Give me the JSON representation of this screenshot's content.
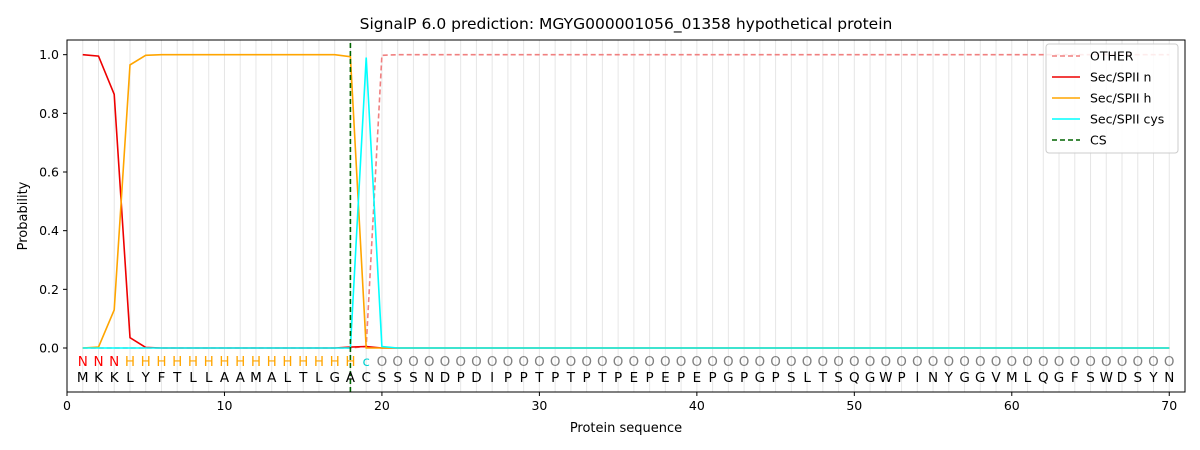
{
  "chart_data": {
    "type": "line",
    "title": "SignalP 6.0 prediction: MGYG000001056_01358 hypothetical protein",
    "xlabel": "Protein sequence",
    "ylabel": "Probability",
    "xlim": [
      0,
      71
    ],
    "ylim": [
      -0.15,
      1.05
    ],
    "xticks": [
      "0",
      "10",
      "20",
      "30",
      "40",
      "50",
      "60",
      "70"
    ],
    "yticks": [
      "0.0",
      "0.2",
      "0.4",
      "0.6",
      "0.8",
      "1.0"
    ],
    "legend_position": "top-right",
    "sequence": [
      "M",
      "K",
      "K",
      "L",
      "Y",
      "F",
      "T",
      "L",
      "L",
      "A",
      "A",
      "M",
      "A",
      "L",
      "T",
      "L",
      "G",
      "A",
      "C",
      "S",
      "S",
      "S",
      "N",
      "D",
      "P",
      "D",
      "I",
      "P",
      "P",
      "T",
      "P",
      "T",
      "P",
      "T",
      "P",
      "E",
      "P",
      "E",
      "P",
      "E",
      "P",
      "G",
      "P",
      "G",
      "P",
      "S",
      "L",
      "T",
      "S",
      "Q",
      "G",
      "W",
      "P",
      "I",
      "N",
      "Y",
      "G",
      "G",
      "V",
      "M",
      "L",
      "Q",
      "G",
      "F",
      "S",
      "W",
      "D",
      "S",
      "Y",
      "N"
    ],
    "region_labels": [
      "N",
      "N",
      "N",
      "H",
      "H",
      "H",
      "H",
      "H",
      "H",
      "H",
      "H",
      "H",
      "H",
      "H",
      "H",
      "H",
      "H",
      "H",
      "c",
      "O",
      "O",
      "O",
      "O",
      "O",
      "O",
      "O",
      "O",
      "O",
      "O",
      "O",
      "O",
      "O",
      "O",
      "O",
      "O",
      "O",
      "O",
      "O",
      "O",
      "O",
      "O",
      "O",
      "O",
      "O",
      "O",
      "O",
      "O",
      "O",
      "O",
      "O",
      "O",
      "O",
      "O",
      "O",
      "O",
      "O",
      "O",
      "O",
      "O",
      "O",
      "O",
      "O",
      "O",
      "O",
      "O",
      "O",
      "O",
      "O",
      "O",
      "O"
    ],
    "cleavage_site": 18,
    "series": [
      {
        "name": "OTHER",
        "color": "#f08080",
        "dash": "dashed",
        "x": [
          1,
          2,
          3,
          4,
          5,
          6,
          7,
          8,
          9,
          10,
          11,
          12,
          13,
          14,
          15,
          16,
          17,
          18,
          19,
          20,
          21,
          70
        ],
        "y": [
          0,
          0,
          0,
          0,
          0,
          0,
          0,
          0,
          0,
          0,
          0,
          0,
          0,
          0,
          0,
          0,
          0,
          0,
          0.005,
          0.998,
          1.0,
          1.0
        ]
      },
      {
        "name": "Sec/SPII n",
        "color": "#ee0000",
        "dash": "solid",
        "x": [
          1,
          2,
          3,
          4,
          5,
          6,
          17,
          18,
          19,
          20,
          70
        ],
        "y": [
          1.0,
          0.995,
          0.865,
          0.035,
          0.002,
          0.0,
          0.0,
          0.003,
          0.005,
          0,
          0
        ]
      },
      {
        "name": "Sec/SPII h",
        "color": "#ffa500",
        "dash": "solid",
        "x": [
          1,
          2,
          3,
          4,
          5,
          6,
          7,
          8,
          9,
          10,
          11,
          12,
          13,
          14,
          15,
          16,
          17,
          18,
          19,
          20,
          70
        ],
        "y": [
          0,
          0.003,
          0.13,
          0.965,
          0.998,
          1.0,
          1.0,
          1.0,
          1.0,
          1.0,
          1.0,
          1.0,
          1.0,
          1.0,
          1.0,
          1.0,
          1.0,
          0.993,
          0.0,
          0,
          0
        ]
      },
      {
        "name": "Sec/SPII cys",
        "color": "#00ffff",
        "dash": "solid",
        "x": [
          1,
          2,
          3,
          17,
          18,
          19,
          20,
          21,
          70
        ],
        "y": [
          0,
          0,
          0,
          0,
          0.0,
          0.99,
          0.005,
          0,
          0
        ]
      },
      {
        "name": "CS",
        "color": "#006400",
        "dash": "dashed",
        "x": [
          18,
          18
        ],
        "y": [
          -0.15,
          1.05
        ]
      }
    ]
  }
}
